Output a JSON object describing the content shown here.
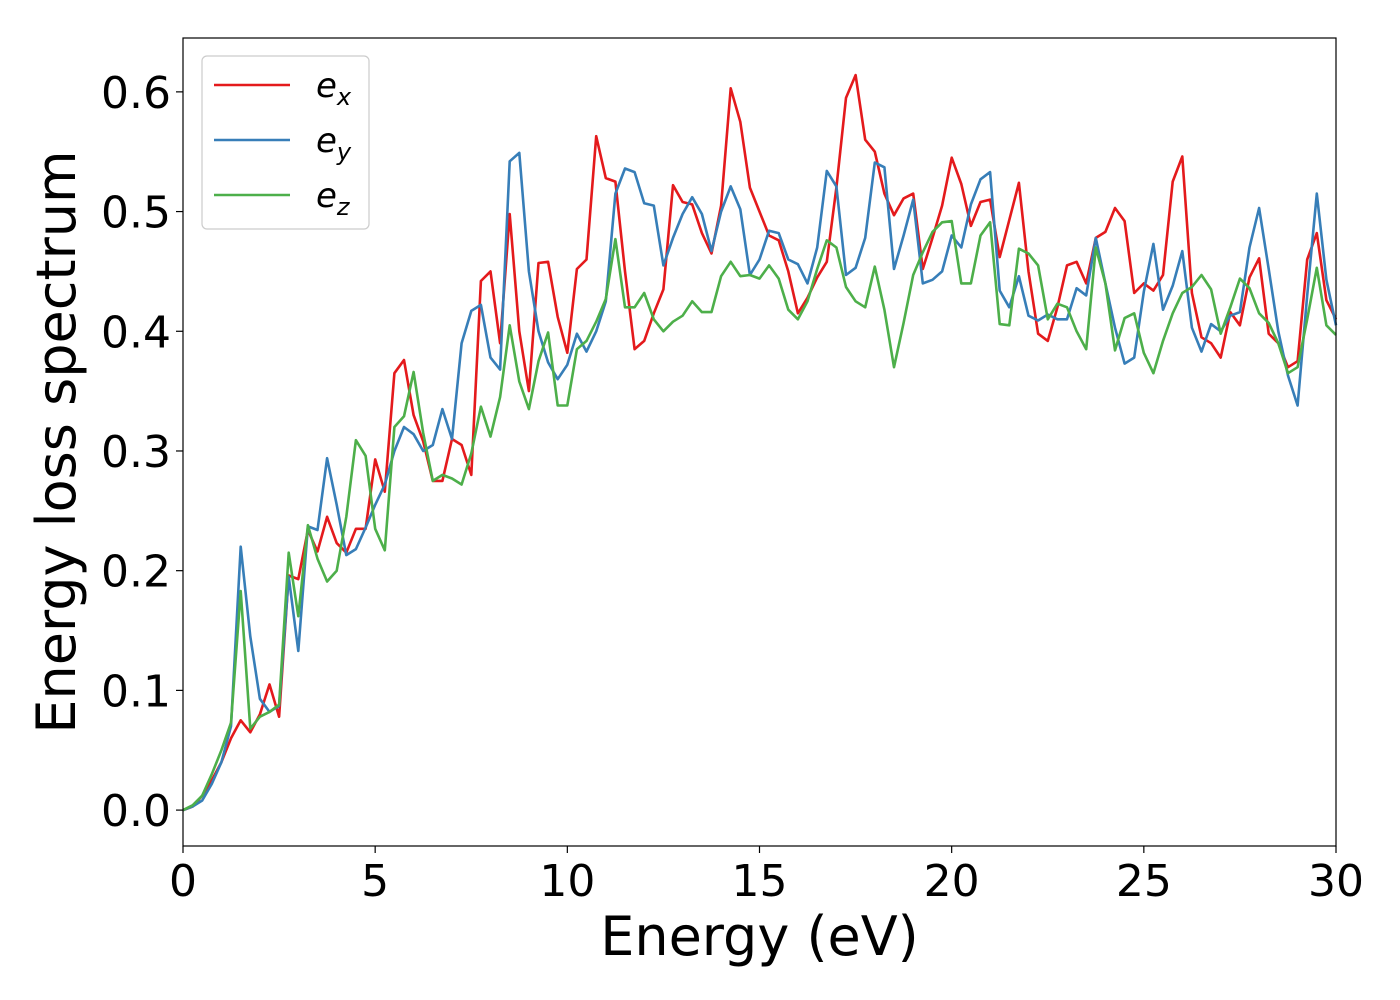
{
  "chart_data": {
    "type": "line",
    "title": "",
    "xlabel": "Energy (eV)",
    "ylabel": "Energy loss spectrum",
    "xlim": [
      0,
      30
    ],
    "ylim": [
      -0.03,
      0.645
    ],
    "xticks": [
      0,
      5,
      10,
      15,
      20,
      25,
      30
    ],
    "yticks": [
      0.0,
      0.1,
      0.2,
      0.3,
      0.4,
      0.5,
      0.6
    ],
    "xtick_labels": [
      "0",
      "5",
      "10",
      "15",
      "20",
      "25",
      "30"
    ],
    "ytick_labels": [
      "0.0",
      "0.1",
      "0.2",
      "0.3",
      "0.4",
      "0.5",
      "0.6"
    ],
    "grid": false,
    "legend_position": "upper-left",
    "series": [
      {
        "name": "e_x",
        "label_base": "e",
        "label_sub": "x",
        "color": "#e41a1c",
        "x": [
          0,
          0.25,
          0.5,
          0.75,
          1,
          1.25,
          1.5,
          1.75,
          2,
          2.25,
          2.5,
          2.75,
          3,
          3.25,
          3.5,
          3.75,
          4,
          4.25,
          4.5,
          4.75,
          5,
          5.25,
          5.5,
          5.75,
          6,
          6.25,
          6.5,
          6.75,
          7,
          7.25,
          7.5,
          7.75,
          8,
          8.25,
          8.5,
          8.75,
          9,
          9.25,
          9.5,
          9.75,
          10,
          10.25,
          10.5,
          10.75,
          11,
          11.25,
          11.5,
          11.75,
          12,
          12.25,
          12.5,
          12.75,
          13,
          13.25,
          13.5,
          13.75,
          14,
          14.25,
          14.5,
          14.75,
          15,
          15.25,
          15.5,
          15.75,
          16,
          16.25,
          16.5,
          16.75,
          17,
          17.25,
          17.5,
          17.75,
          18,
          18.25,
          18.5,
          18.75,
          19,
          19.25,
          19.5,
          19.75,
          20,
          20.25,
          20.5,
          20.75,
          21,
          21.25,
          21.5,
          21.75,
          22,
          22.25,
          22.5,
          22.75,
          23,
          23.25,
          23.5,
          23.75,
          24,
          24.25,
          24.5,
          24.75,
          25,
          25.25,
          25.5,
          25.75,
          26,
          26.25,
          26.5,
          26.75,
          27,
          27.25,
          27.5,
          27.75,
          28,
          28.25,
          28.5,
          28.75,
          29,
          29.25,
          29.5,
          29.75,
          30
        ],
        "y": [
          0.0,
          0.003,
          0.012,
          0.025,
          0.04,
          0.06,
          0.075,
          0.065,
          0.08,
          0.105,
          0.078,
          0.196,
          0.193,
          0.234,
          0.216,
          0.245,
          0.223,
          0.215,
          0.235,
          0.235,
          0.293,
          0.266,
          0.365,
          0.376,
          0.33,
          0.308,
          0.275,
          0.275,
          0.31,
          0.305,
          0.28,
          0.442,
          0.45,
          0.39,
          0.498,
          0.4,
          0.35,
          0.457,
          0.458,
          0.412,
          0.382,
          0.452,
          0.46,
          0.563,
          0.528,
          0.525,
          0.45,
          0.385,
          0.392,
          0.415,
          0.435,
          0.522,
          0.508,
          0.506,
          0.482,
          0.465,
          0.505,
          0.603,
          0.575,
          0.52,
          0.5,
          0.48,
          0.476,
          0.45,
          0.415,
          0.428,
          0.445,
          0.458,
          0.52,
          0.595,
          0.614,
          0.56,
          0.55,
          0.515,
          0.497,
          0.511,
          0.515,
          0.452,
          0.478,
          0.505,
          0.545,
          0.523,
          0.488,
          0.508,
          0.51,
          0.462,
          0.493,
          0.524,
          0.45,
          0.398,
          0.392,
          0.42,
          0.455,
          0.458,
          0.44,
          0.478,
          0.483,
          0.503,
          0.492,
          0.432,
          0.44,
          0.434,
          0.447,
          0.525,
          0.546,
          0.432,
          0.395,
          0.39,
          0.378,
          0.416,
          0.405,
          0.445,
          0.461,
          0.398,
          0.39,
          0.37,
          0.375,
          0.46,
          0.482,
          0.426,
          0.41
        ]
      },
      {
        "name": "e_y",
        "label_base": "e",
        "label_sub": "y",
        "color": "#377eb8",
        "x": [
          0,
          0.25,
          0.5,
          0.75,
          1,
          1.25,
          1.5,
          1.75,
          2,
          2.25,
          2.5,
          2.75,
          3,
          3.25,
          3.5,
          3.75,
          4,
          4.25,
          4.5,
          4.75,
          5,
          5.25,
          5.5,
          5.75,
          6,
          6.25,
          6.5,
          6.75,
          7,
          7.25,
          7.5,
          7.75,
          8,
          8.25,
          8.5,
          8.75,
          9,
          9.25,
          9.5,
          9.75,
          10,
          10.25,
          10.5,
          10.75,
          11,
          11.25,
          11.5,
          11.75,
          12,
          12.25,
          12.5,
          12.75,
          13,
          13.25,
          13.5,
          13.75,
          14,
          14.25,
          14.5,
          14.75,
          15,
          15.25,
          15.5,
          15.75,
          16,
          16.25,
          16.5,
          16.75,
          17,
          17.25,
          17.5,
          17.75,
          18,
          18.25,
          18.5,
          18.75,
          19,
          19.25,
          19.5,
          19.75,
          20,
          20.25,
          20.5,
          20.75,
          21,
          21.25,
          21.5,
          21.75,
          22,
          22.25,
          22.5,
          22.75,
          23,
          23.25,
          23.5,
          23.75,
          24,
          24.25,
          24.5,
          24.75,
          25,
          25.25,
          25.5,
          25.75,
          26,
          26.25,
          26.5,
          26.75,
          27,
          27.25,
          27.5,
          27.75,
          28,
          28.25,
          28.5,
          28.75,
          29,
          29.25,
          29.5,
          29.75,
          30
        ],
        "y": [
          0.0,
          0.003,
          0.008,
          0.022,
          0.04,
          0.07,
          0.22,
          0.145,
          0.093,
          0.082,
          0.087,
          0.195,
          0.133,
          0.237,
          0.234,
          0.294,
          0.255,
          0.213,
          0.218,
          0.236,
          0.255,
          0.272,
          0.3,
          0.32,
          0.314,
          0.3,
          0.305,
          0.335,
          0.31,
          0.39,
          0.417,
          0.422,
          0.378,
          0.368,
          0.542,
          0.549,
          0.45,
          0.4,
          0.374,
          0.36,
          0.372,
          0.398,
          0.383,
          0.4,
          0.425,
          0.515,
          0.536,
          0.533,
          0.507,
          0.505,
          0.455,
          0.478,
          0.498,
          0.512,
          0.498,
          0.467,
          0.5,
          0.521,
          0.502,
          0.447,
          0.46,
          0.484,
          0.482,
          0.46,
          0.456,
          0.44,
          0.47,
          0.534,
          0.521,
          0.447,
          0.453,
          0.478,
          0.541,
          0.537,
          0.452,
          0.48,
          0.51,
          0.44,
          0.443,
          0.45,
          0.48,
          0.47,
          0.506,
          0.527,
          0.533,
          0.434,
          0.42,
          0.446,
          0.413,
          0.409,
          0.414,
          0.41,
          0.41,
          0.436,
          0.43,
          0.478,
          0.44,
          0.403,
          0.373,
          0.378,
          0.433,
          0.473,
          0.418,
          0.438,
          0.467,
          0.403,
          0.383,
          0.406,
          0.4,
          0.413,
          0.416,
          0.47,
          0.503,
          0.452,
          0.4,
          0.363,
          0.338,
          0.43,
          0.515,
          0.443,
          0.405
        ]
      },
      {
        "name": "e_z",
        "label_base": "e",
        "label_sub": "z",
        "color": "#4daf4a",
        "x": [
          0,
          0.25,
          0.5,
          0.75,
          1,
          1.25,
          1.5,
          1.75,
          2,
          2.25,
          2.5,
          2.75,
          3,
          3.25,
          3.5,
          3.75,
          4,
          4.25,
          4.5,
          4.75,
          5,
          5.25,
          5.5,
          5.75,
          6,
          6.25,
          6.5,
          6.75,
          7,
          7.25,
          7.5,
          7.75,
          8,
          8.25,
          8.5,
          8.75,
          9,
          9.25,
          9.5,
          9.75,
          10,
          10.25,
          10.5,
          10.75,
          11,
          11.25,
          11.5,
          11.75,
          12,
          12.25,
          12.5,
          12.75,
          13,
          13.25,
          13.5,
          13.75,
          14,
          14.25,
          14.5,
          14.75,
          15,
          15.25,
          15.5,
          15.75,
          16,
          16.25,
          16.5,
          16.75,
          17,
          17.25,
          17.5,
          17.75,
          18,
          18.25,
          18.5,
          18.75,
          19,
          19.25,
          19.5,
          19.75,
          20,
          20.25,
          20.5,
          20.75,
          21,
          21.25,
          21.5,
          21.75,
          22,
          22.25,
          22.5,
          22.75,
          23,
          23.25,
          23.5,
          23.75,
          24,
          24.25,
          24.5,
          24.75,
          25,
          25.25,
          25.5,
          25.75,
          26,
          26.25,
          26.5,
          26.75,
          27,
          27.25,
          27.5,
          27.75,
          28,
          28.25,
          28.5,
          28.75,
          29,
          29.25,
          29.5,
          29.75,
          30
        ],
        "y": [
          0.0,
          0.004,
          0.012,
          0.03,
          0.05,
          0.073,
          0.183,
          0.068,
          0.078,
          0.082,
          0.088,
          0.215,
          0.162,
          0.238,
          0.21,
          0.191,
          0.2,
          0.245,
          0.309,
          0.296,
          0.235,
          0.217,
          0.32,
          0.329,
          0.366,
          0.315,
          0.275,
          0.28,
          0.277,
          0.272,
          0.298,
          0.337,
          0.312,
          0.345,
          0.405,
          0.358,
          0.335,
          0.375,
          0.399,
          0.338,
          0.338,
          0.385,
          0.392,
          0.408,
          0.427,
          0.477,
          0.42,
          0.42,
          0.432,
          0.41,
          0.4,
          0.408,
          0.413,
          0.425,
          0.416,
          0.416,
          0.446,
          0.458,
          0.446,
          0.447,
          0.444,
          0.455,
          0.444,
          0.418,
          0.41,
          0.425,
          0.452,
          0.476,
          0.47,
          0.437,
          0.425,
          0.42,
          0.454,
          0.418,
          0.37,
          0.407,
          0.447,
          0.466,
          0.483,
          0.491,
          0.492,
          0.44,
          0.44,
          0.48,
          0.491,
          0.406,
          0.405,
          0.469,
          0.465,
          0.455,
          0.41,
          0.423,
          0.42,
          0.4,
          0.385,
          0.47,
          0.44,
          0.384,
          0.411,
          0.415,
          0.382,
          0.365,
          0.392,
          0.415,
          0.432,
          0.437,
          0.447,
          0.435,
          0.398,
          0.42,
          0.444,
          0.436,
          0.415,
          0.407,
          0.39,
          0.365,
          0.37,
          0.41,
          0.453,
          0.405,
          0.397
        ]
      }
    ]
  }
}
